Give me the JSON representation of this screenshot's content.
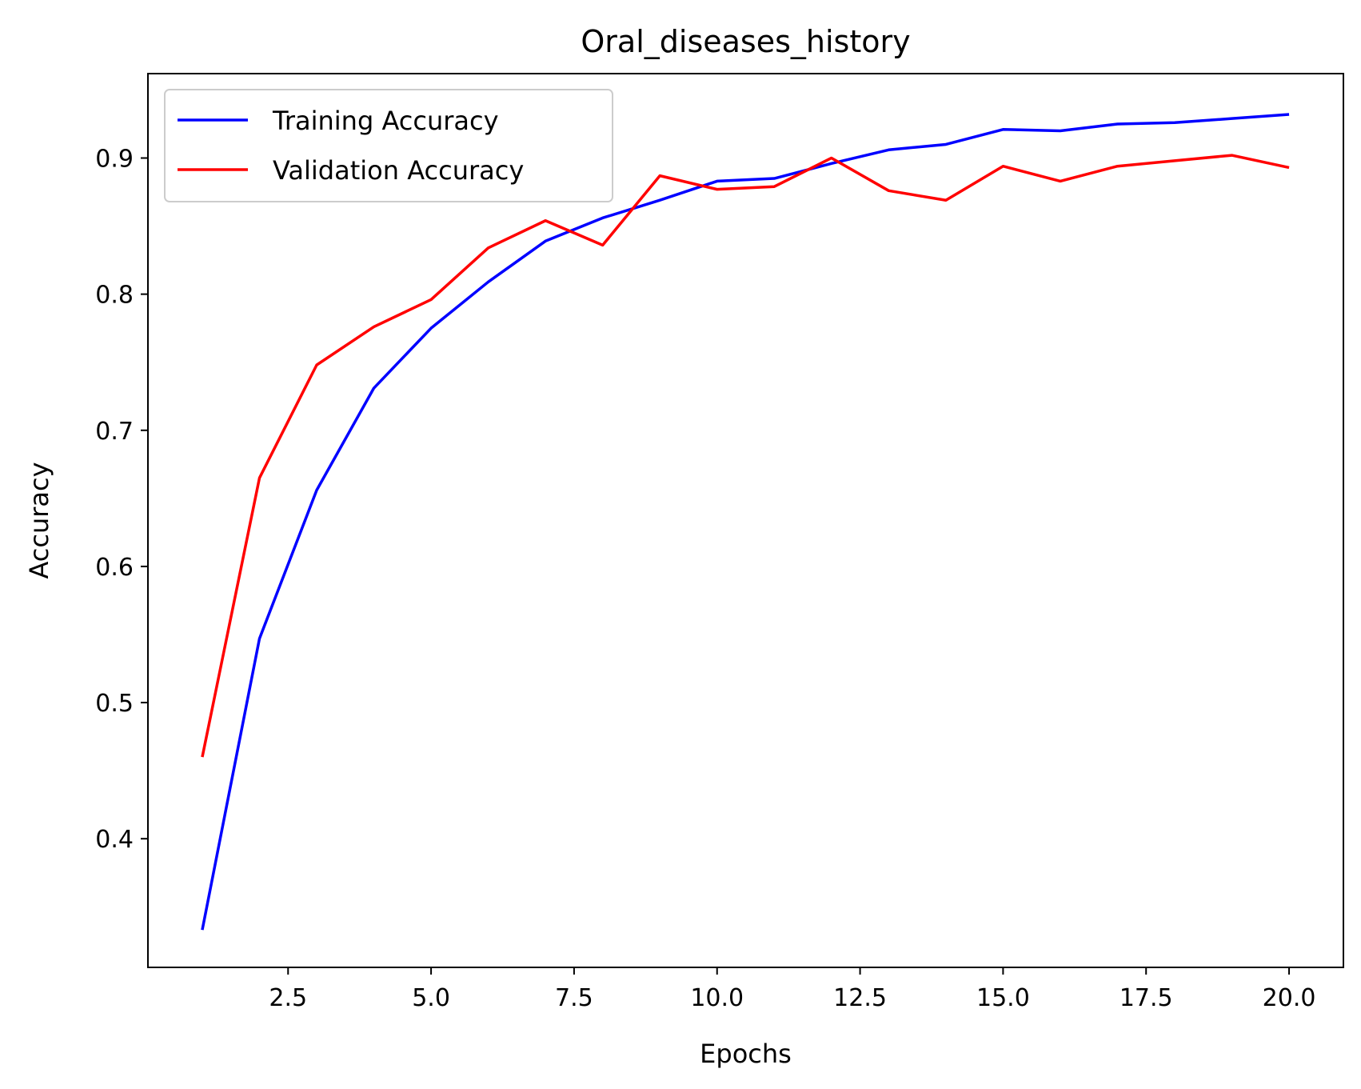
{
  "chart_data": {
    "type": "line",
    "title": "Oral_diseases_history",
    "xlabel": "Epochs",
    "ylabel": "Accuracy",
    "xlim": [
      0.05,
      20.95
    ],
    "ylim": [
      0.3055,
      0.962
    ],
    "xticks": [
      2.5,
      5.0,
      7.5,
      10.0,
      12.5,
      15.0,
      17.5,
      20.0
    ],
    "xtick_labels": [
      "2.5",
      "5.0",
      "7.5",
      "10.0",
      "12.5",
      "15.0",
      "17.5",
      "20.0"
    ],
    "yticks": [
      0.4,
      0.5,
      0.6,
      0.7,
      0.8,
      0.9
    ],
    "ytick_labels": [
      "0.4",
      "0.5",
      "0.6",
      "0.7",
      "0.8",
      "0.9"
    ],
    "grid": false,
    "legend_position": "upper-left",
    "x": [
      1,
      2,
      3,
      4,
      5,
      6,
      7,
      8,
      9,
      10,
      11,
      12,
      13,
      14,
      15,
      16,
      17,
      18,
      19,
      20
    ],
    "series": [
      {
        "name": "Training Accuracy",
        "color": "#0000ff",
        "values": [
          0.333,
          0.547,
          0.656,
          0.731,
          0.775,
          0.809,
          0.839,
          0.856,
          0.869,
          0.883,
          0.885,
          0.896,
          0.906,
          0.91,
          0.921,
          0.92,
          0.925,
          0.926,
          0.929,
          0.932
        ]
      },
      {
        "name": "Validation Accuracy",
        "color": "#ff0000",
        "values": [
          0.46,
          0.665,
          0.748,
          0.776,
          0.796,
          0.834,
          0.854,
          0.836,
          0.887,
          0.877,
          0.879,
          0.9,
          0.876,
          0.869,
          0.894,
          0.883,
          0.894,
          0.898,
          0.902,
          0.893
        ]
      }
    ]
  }
}
